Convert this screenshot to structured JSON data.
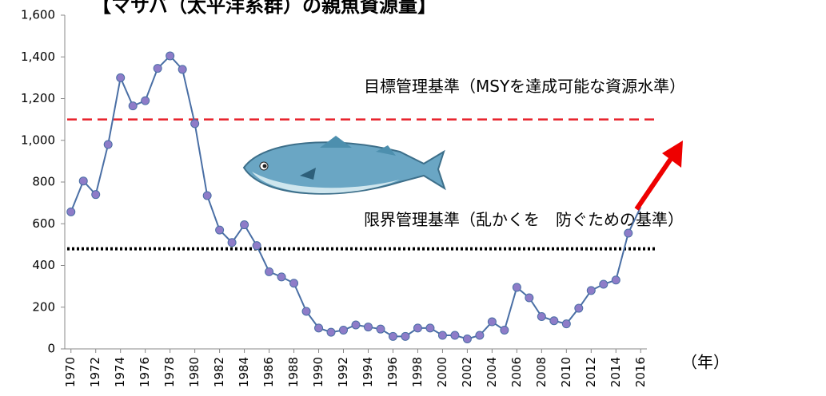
{
  "chart_data": {
    "type": "line",
    "title": "【マサバ（太平洋系群）の親魚資源量】",
    "x_label": "（年）",
    "x": [
      1970,
      1971,
      1972,
      1973,
      1974,
      1975,
      1976,
      1977,
      1978,
      1979,
      1980,
      1981,
      1982,
      1983,
      1984,
      1985,
      1986,
      1987,
      1988,
      1989,
      1990,
      1991,
      1992,
      1993,
      1994,
      1995,
      1996,
      1997,
      1998,
      1999,
      2000,
      2001,
      2002,
      2003,
      2004,
      2005,
      2006,
      2007,
      2008,
      2009,
      2010,
      2011,
      2012,
      2013,
      2014,
      2015,
      2016
    ],
    "series": [
      {
        "name": "親魚資源量",
        "color": "#4a6fa5",
        "marker_color": "#8e7cc8",
        "values": [
          657,
          805,
          740,
          980,
          1300,
          1165,
          1190,
          1345,
          1405,
          1340,
          1080,
          735,
          570,
          510,
          595,
          495,
          370,
          345,
          315,
          180,
          100,
          80,
          90,
          115,
          105,
          95,
          60,
          60,
          100,
          100,
          65,
          65,
          48,
          65,
          130,
          90,
          295,
          245,
          155,
          135,
          120,
          195,
          280,
          310,
          330,
          555,
          680
        ]
      }
    ],
    "xlim": [
      1969.5,
      2016.5
    ],
    "xticks": [
      1970,
      1972,
      1974,
      1976,
      1978,
      1980,
      1982,
      1984,
      1986,
      1988,
      1990,
      1992,
      1994,
      1996,
      1998,
      2000,
      2002,
      2004,
      2006,
      2008,
      2010,
      2012,
      2014,
      2016
    ],
    "ylim": [
      0,
      1600
    ],
    "yticks": [
      0,
      200,
      400,
      600,
      800,
      {
        "value": 1000,
        "label": "1,000"
      },
      {
        "value": 1200,
        "label": "1,200"
      },
      {
        "value": 1400,
        "label": "1,400"
      },
      {
        "value": 1600,
        "label": "1,600"
      }
    ],
    "reference_lines": [
      {
        "label": "目標管理基準（MSYを達成可能な資源水準）",
        "value": 1100,
        "color": "#e8202a",
        "style": "dashed"
      },
      {
        "label": "限界管理基準（乱かくを　防ぐための基準）",
        "value": 480,
        "color": "#000000",
        "style": "dotted"
      }
    ]
  }
}
